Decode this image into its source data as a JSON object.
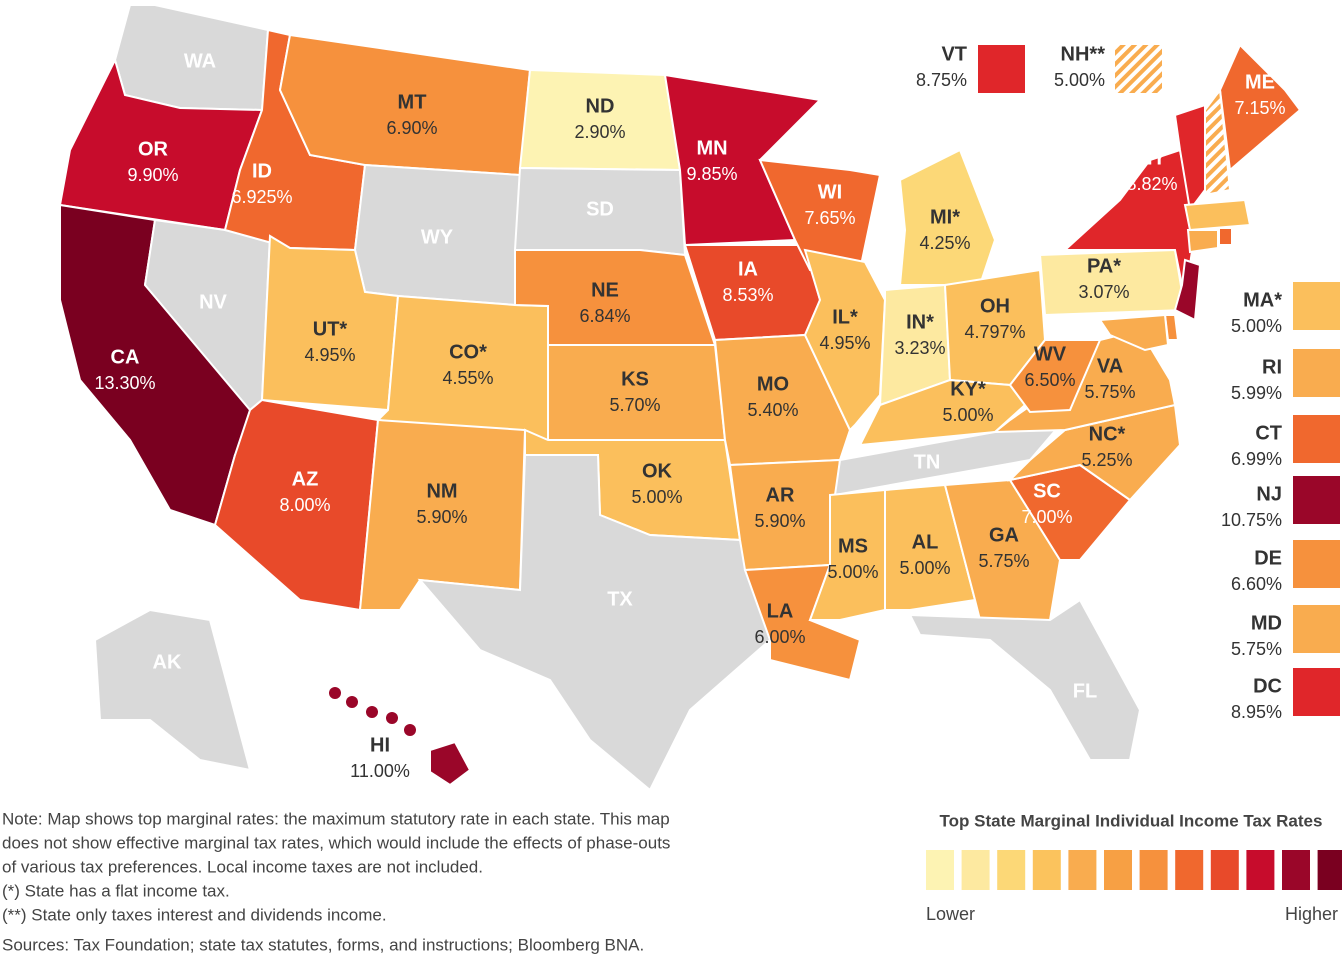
{
  "map": {
    "states": [
      {
        "abbr": "WA",
        "color": "#d9d9d9"
      },
      {
        "abbr": "OR",
        "rate": "9.90%",
        "color": "#c70c2c"
      },
      {
        "abbr": "CA",
        "rate": "13.30%",
        "color": "#7a0020"
      },
      {
        "abbr": "NV",
        "color": "#d9d9d9"
      },
      {
        "abbr": "ID",
        "rate": "6.925%",
        "color": "#f0682e"
      },
      {
        "abbr": "MT",
        "rate": "6.90%",
        "color": "#f6913d"
      },
      {
        "abbr": "WY",
        "color": "#d9d9d9"
      },
      {
        "abbr": "UT*",
        "rate": "4.95%",
        "color": "#fbbf5c"
      },
      {
        "abbr": "CO*",
        "rate": "4.55%",
        "color": "#fbbf5c"
      },
      {
        "abbr": "AZ",
        "rate": "8.00%",
        "color": "#e84a2a"
      },
      {
        "abbr": "NM",
        "rate": "5.90%",
        "color": "#f9ac4f"
      },
      {
        "abbr": "ND",
        "rate": "2.90%",
        "color": "#fdf3b3"
      },
      {
        "abbr": "SD",
        "color": "#d9d9d9"
      },
      {
        "abbr": "NE",
        "rate": "6.84%",
        "color": "#f6913d"
      },
      {
        "abbr": "KS",
        "rate": "5.70%",
        "color": "#f9ac4f"
      },
      {
        "abbr": "OK",
        "rate": "5.00%",
        "color": "#fbbf5c"
      },
      {
        "abbr": "TX",
        "color": "#d9d9d9"
      },
      {
        "abbr": "MN",
        "rate": "9.85%",
        "color": "#c70c2c"
      },
      {
        "abbr": "IA",
        "rate": "8.53%",
        "color": "#e84a2a"
      },
      {
        "abbr": "MO",
        "rate": "5.40%",
        "color": "#f9ac4f"
      },
      {
        "abbr": "AR",
        "rate": "5.90%",
        "color": "#f9ac4f"
      },
      {
        "abbr": "LA",
        "rate": "6.00%",
        "color": "#f6913d"
      },
      {
        "abbr": "WI",
        "rate": "7.65%",
        "color": "#f0682e"
      },
      {
        "abbr": "IL*",
        "rate": "4.95%",
        "color": "#fbbf5c"
      },
      {
        "abbr": "MI*",
        "rate": "4.25%",
        "color": "#fcd877"
      },
      {
        "abbr": "IN*",
        "rate": "3.23%",
        "color": "#fde9a0"
      },
      {
        "abbr": "OH",
        "rate": "4.797%",
        "color": "#fbbf5c"
      },
      {
        "abbr": "KY*",
        "rate": "5.00%",
        "color": "#fbbf5c"
      },
      {
        "abbr": "TN",
        "color": "#d9d9d9"
      },
      {
        "abbr": "MS",
        "rate": "5.00%",
        "color": "#fbbf5c"
      },
      {
        "abbr": "AL",
        "rate": "5.00%",
        "color": "#fbbf5c"
      },
      {
        "abbr": "GA",
        "rate": "5.75%",
        "color": "#f9ac4f"
      },
      {
        "abbr": "FL",
        "color": "#d9d9d9"
      },
      {
        "abbr": "SC",
        "rate": "7.00%",
        "color": "#f0682e"
      },
      {
        "abbr": "NC*",
        "rate": "5.25%",
        "color": "#f9ac4f"
      },
      {
        "abbr": "VA",
        "rate": "5.75%",
        "color": "#f9ac4f"
      },
      {
        "abbr": "WV",
        "rate": "6.50%",
        "color": "#f6913d"
      },
      {
        "abbr": "PA*",
        "rate": "3.07%",
        "color": "#fde9a0"
      },
      {
        "abbr": "NY",
        "rate": "8.82%",
        "color": "#e0262a"
      },
      {
        "abbr": "ME",
        "rate": "7.15%",
        "color": "#f0682e"
      },
      {
        "abbr": "HI",
        "rate": "11.00%",
        "color": "#9a0629"
      },
      {
        "abbr": "AK",
        "color": "#d9d9d9"
      },
      {
        "abbr": "VT",
        "rate": "8.75%",
        "color": "#e0262a"
      },
      {
        "abbr": "NH**",
        "rate": "5.00%",
        "color": "#f9ac4f",
        "pattern": "hatched"
      },
      {
        "abbr": "MA*",
        "rate": "5.00%",
        "color": "#fbbf5c"
      },
      {
        "abbr": "RI",
        "rate": "5.99%",
        "color": "#f9ac4f"
      },
      {
        "abbr": "CT",
        "rate": "6.99%",
        "color": "#f0682e"
      },
      {
        "abbr": "NJ",
        "rate": "10.75%",
        "color": "#9a0629"
      },
      {
        "abbr": "DE",
        "rate": "6.60%",
        "color": "#f6913d"
      },
      {
        "abbr": "MD",
        "rate": "5.75%",
        "color": "#f9ac4f"
      },
      {
        "abbr": "DC",
        "rate": "8.95%",
        "color": "#e0262a"
      }
    ],
    "notes": [
      "Note: Map shows top marginal rates: the maximum statutory rate in each state. This map",
      "does not show effective marginal tax rates, which would include the effects of phase-outs",
      "of various tax preferences. Local income taxes are not included.",
      "(*) State has a flat income tax.",
      "(**) State only taxes interest and dividends income.",
      "Sources: Tax Foundation; state tax statutes, forms, and instructions; Bloomberg BNA."
    ],
    "legend": {
      "title": "Top State Marginal Individual Income Tax Rates",
      "colors": [
        "#fdf3b3",
        "#fde9a0",
        "#fcd877",
        "#fbc35d",
        "#f9ac4f",
        "#f7a044",
        "#f6913d",
        "#f0682e",
        "#e84a2a",
        "#c70c2c",
        "#9a0629",
        "#7a0020"
      ],
      "low": "Lower",
      "high": "Higher"
    }
  }
}
